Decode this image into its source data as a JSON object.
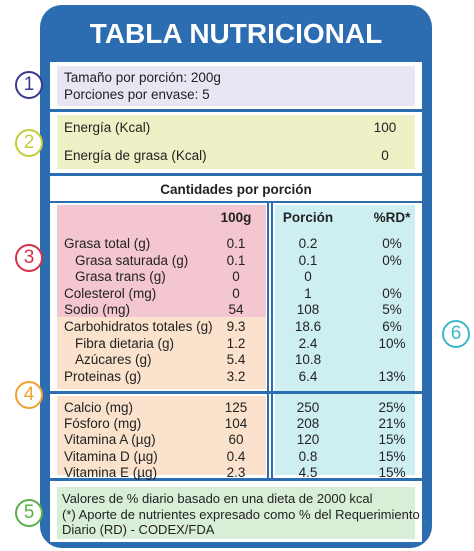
{
  "title": "TABLA NUTRICIONAL",
  "markers": [
    "1",
    "2",
    "3",
    "4",
    "5",
    "6"
  ],
  "serving": {
    "size": "Tamaño por porción: 200g",
    "per_container": "Porciones por envase: 5"
  },
  "energy": [
    [
      "Energía (Kcal)",
      "100"
    ],
    [
      "Energía de grasa (Kcal)",
      "0"
    ]
  ],
  "amounts_heading": "Cantidades por porción",
  "table": {
    "header": [
      "100g",
      "Porción",
      "%RD*"
    ],
    "rows": [
      [
        "Grasa total (g)",
        "0.1",
        "0.2",
        "0%"
      ],
      [
        "Grasa saturada (g)",
        "0.1",
        "0.1",
        "0%"
      ],
      [
        "Grasa trans (g)",
        "0",
        "0",
        null
      ],
      [
        "Colesterol (mg)",
        "0",
        "1",
        "0%"
      ],
      [
        "Sodio (mg)",
        "54",
        "108",
        "5%"
      ],
      [
        "Carbohidratos totales (g)",
        "9.3",
        "18.6",
        "6%"
      ],
      [
        "Fibra dietaria (g)",
        "1.2",
        "2.4",
        "10%"
      ],
      [
        "Azúcares (g)",
        "5.4",
        "10.8",
        null
      ],
      [
        "Proteinas (g)",
        "3.2",
        "6.4",
        "13%"
      ]
    ],
    "minerals": [
      [
        "Calcio (mg)",
        "125",
        "250",
        "25%"
      ],
      [
        "Fósforo (mg)",
        "104",
        "208",
        "21%"
      ],
      [
        "Vitamina A (µg)",
        "60",
        "120",
        "15%"
      ],
      [
        "Vitamina D (µg)",
        "0.4",
        "0.8",
        "15%"
      ],
      [
        "Vitamina E (µg)",
        "2.3",
        "4.5",
        "15%"
      ]
    ]
  },
  "footnote": [
    "Valores de % diario basado en una dieta de 2000 kcal",
    "(*) Aporte de nutrientes expresado como % del Requerimiento",
    "Diario (RD) - CODEX/FDA"
  ]
}
